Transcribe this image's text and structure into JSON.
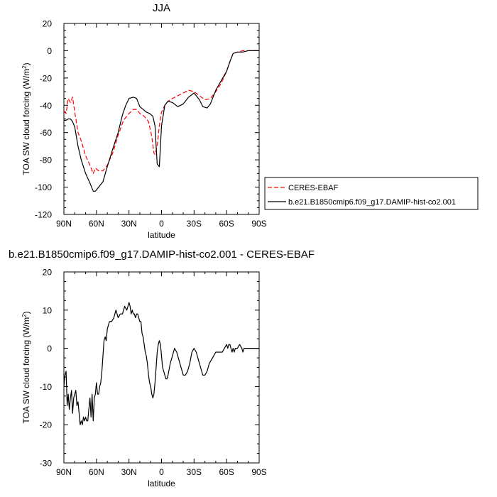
{
  "chart_data": [
    {
      "type": "line",
      "title": "JJA",
      "xlabel": "latitude",
      "ylabel_main": "TOA SW cloud forcing (W/m",
      "ylabel_sup": "2",
      "ylabel_close": ")",
      "xlim": [
        90,
        -90
      ],
      "ylim": [
        -120,
        20
      ],
      "xticks": [
        90,
        60,
        30,
        0,
        -30,
        -60,
        -90
      ],
      "xtick_labels": [
        "90N",
        "60N",
        "30N",
        "0",
        "30S",
        "60S",
        "90S"
      ],
      "yticks": [
        -120,
        -100,
        -80,
        -60,
        -40,
        -20,
        0,
        20
      ],
      "ytick_labels": [
        "-120",
        "-100",
        "-80",
        "-60",
        "-40",
        "-20",
        "0",
        "20"
      ],
      "legend_placement": "right",
      "series": [
        {
          "name": "CERES-EBAF",
          "color": "#ff0000",
          "dash": "dashed",
          "x": [
            90,
            88,
            86,
            84,
            82,
            80,
            77,
            74,
            70,
            66,
            63,
            61,
            58,
            54,
            50,
            45,
            40,
            35,
            30,
            26,
            23,
            20,
            16,
            12,
            9,
            7,
            6,
            4,
            2,
            0,
            -3,
            -6,
            -10,
            -15,
            -20,
            -25,
            -30,
            -35,
            -40,
            -45,
            -50,
            -55,
            -60,
            -63,
            -66,
            -70,
            -75,
            -80,
            -85,
            -90
          ],
          "y": [
            -44,
            -46,
            -35,
            -38,
            -34,
            -45,
            -60,
            -66,
            -77,
            -84,
            -90,
            -86,
            -88,
            -88,
            -84,
            -75,
            -62,
            -51,
            -46,
            -43,
            -43,
            -46,
            -48,
            -52,
            -63,
            -75,
            -76,
            -70,
            -55,
            -45,
            -40,
            -37,
            -35,
            -33,
            -31,
            -29,
            -30,
            -33,
            -36,
            -35,
            -30,
            -24,
            -15,
            -8,
            -2,
            -1,
            0,
            0,
            0,
            0
          ]
        },
        {
          "name": "b.e21.B1850cmip6.f09_g17.DAMIP-hist-co2.001",
          "color": "#000000",
          "dash": "solid",
          "x": [
            90,
            88,
            86,
            84,
            82,
            80,
            77,
            74,
            70,
            66,
            63,
            61,
            58,
            54,
            50,
            45,
            40,
            36,
            33,
            30,
            26,
            23,
            20,
            17,
            14,
            11,
            8,
            6,
            5,
            4,
            2,
            0,
            -3,
            -6,
            -10,
            -15,
            -20,
            -25,
            -30,
            -35,
            -38,
            -42,
            -45,
            -50,
            -55,
            -60,
            -63,
            -66,
            -70,
            -75,
            -80,
            -85,
            -90
          ],
          "y": [
            -51,
            -51,
            -50,
            -50,
            -52,
            -56,
            -70,
            -80,
            -90,
            -97,
            -103,
            -103,
            -100,
            -96,
            -85,
            -72,
            -60,
            -47,
            -40,
            -35,
            -34,
            -35,
            -41,
            -43,
            -45,
            -46,
            -48,
            -55,
            -70,
            -83,
            -85,
            -55,
            -40,
            -37,
            -38,
            -41,
            -39,
            -34,
            -31,
            -36,
            -41,
            -42,
            -39,
            -29,
            -22,
            -15,
            -8,
            -2,
            -1,
            -1,
            0,
            0,
            0
          ]
        }
      ]
    },
    {
      "type": "line",
      "title": "b.e21.B1850cmip6.f09_g17.DAMIP-hist-co2.001 - CERES-EBAF",
      "xlabel": "latitude",
      "ylabel_main": "TOA SW cloud forcing (W/m",
      "ylabel_sup": "2",
      "ylabel_close": ")",
      "xlim": [
        90,
        -90
      ],
      "ylim": [
        -30,
        20
      ],
      "xticks": [
        90,
        60,
        30,
        0,
        -30,
        -60,
        -90
      ],
      "xtick_labels": [
        "90N",
        "60N",
        "30N",
        "0",
        "30S",
        "60S",
        "90S"
      ],
      "yticks": [
        -30,
        -20,
        -10,
        0,
        10,
        20
      ],
      "ytick_labels": [
        "-30",
        "-20",
        "-10",
        "0",
        "10",
        "20"
      ],
      "series": [
        {
          "name": "",
          "color": "#000000",
          "dash": "solid",
          "x": [
            90,
            89,
            88,
            87,
            86,
            85,
            84,
            83,
            82,
            81,
            80,
            79,
            78,
            77,
            76,
            75,
            74,
            73,
            72,
            71,
            70,
            69,
            68,
            67,
            66,
            65,
            64,
            63,
            62,
            61,
            60,
            59,
            58,
            57,
            56,
            55,
            54,
            53,
            52,
            51,
            50,
            49,
            48,
            46,
            44,
            42,
            40,
            38,
            36,
            34,
            32,
            30,
            29,
            28,
            27,
            26,
            25,
            24,
            23,
            22,
            21,
            20,
            19,
            18,
            17,
            16,
            15,
            14,
            13,
            12,
            11,
            10,
            9,
            8,
            7,
            6,
            5,
            4,
            3,
            2,
            1,
            0,
            -1,
            -2,
            -3,
            -4,
            -5,
            -6,
            -8,
            -10,
            -12,
            -14,
            -16,
            -18,
            -20,
            -22,
            -24,
            -26,
            -28,
            -30,
            -32,
            -34,
            -36,
            -38,
            -40,
            -42,
            -44,
            -46,
            -48,
            -50,
            -52,
            -54,
            -56,
            -58,
            -60,
            -61,
            -62,
            -63,
            -64,
            -65,
            -66,
            -67,
            -68,
            -70,
            -72,
            -74,
            -75,
            -76,
            -78,
            -80,
            -82,
            -85,
            -88,
            -90
          ],
          "y": [
            -10,
            -7,
            -6,
            -15,
            -12,
            -16,
            -13,
            -11,
            -17,
            -13,
            -12,
            -11,
            -15,
            -14,
            -17,
            -20,
            -19,
            -20,
            -18,
            -19,
            -18,
            -19,
            -19,
            -16,
            -13,
            -18,
            -12,
            -19,
            -13,
            -12,
            -9,
            -12,
            -12,
            -10,
            -9,
            -6,
            -2,
            2,
            3,
            2,
            5,
            6,
            7,
            7,
            8,
            10,
            8,
            9,
            9,
            11,
            10,
            12,
            11,
            9,
            10,
            9,
            9,
            8,
            9,
            9,
            8,
            7,
            7,
            4,
            3,
            1,
            -1,
            -2,
            -4,
            -7,
            -9,
            -10,
            -12,
            -13,
            -12,
            -9,
            -5,
            -1,
            1,
            2,
            1,
            -2,
            -5,
            -6,
            -7,
            -8,
            -8,
            -7,
            -4,
            -2,
            0,
            -1,
            -3,
            -5,
            -7,
            -7,
            -6,
            -4,
            -1,
            0,
            -1,
            -3,
            -5,
            -7,
            -7,
            -6,
            -4,
            -3,
            -2,
            -1,
            -1,
            -1,
            -1,
            0,
            1,
            0,
            1,
            1,
            0,
            -1,
            0,
            -1,
            0,
            0,
            1,
            0,
            -1,
            0,
            0,
            0,
            0,
            0,
            0,
            0
          ]
        }
      ]
    }
  ]
}
